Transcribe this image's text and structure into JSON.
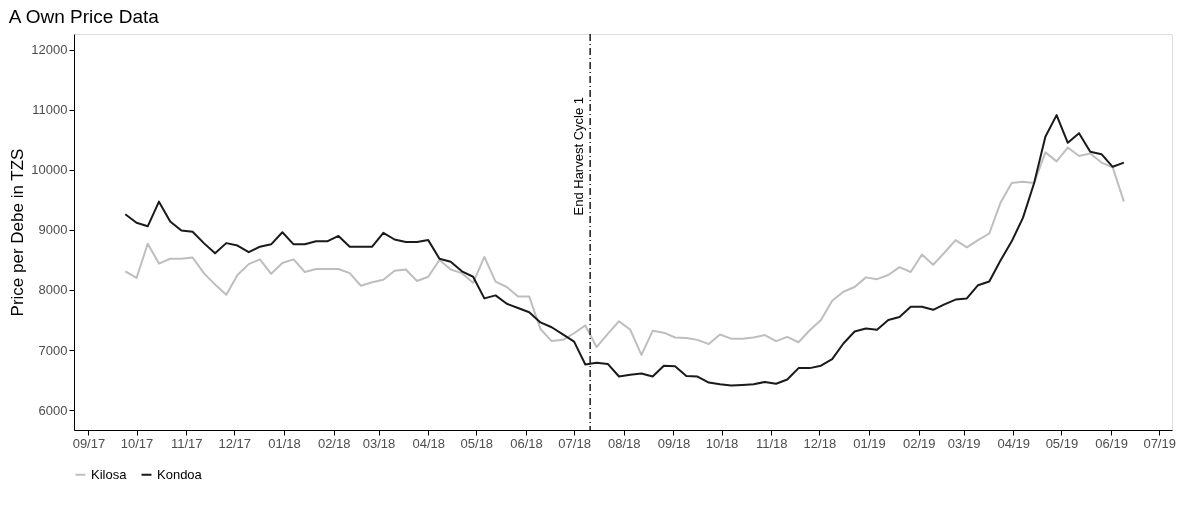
{
  "chart_data": {
    "type": "line",
    "title": "A   Own Price Data",
    "ylabel": "Price per Debe in TZS",
    "x": [
      "2017-09-24",
      "2017-10-01",
      "2017-10-08",
      "2017-10-15",
      "2017-10-22",
      "2017-10-29",
      "2017-11-05",
      "2017-11-12",
      "2017-11-19",
      "2017-11-26",
      "2017-12-03",
      "2017-12-10",
      "2017-12-17",
      "2017-12-24",
      "2017-12-31",
      "2018-01-07",
      "2018-01-14",
      "2018-01-21",
      "2018-01-28",
      "2018-02-04",
      "2018-02-11",
      "2018-02-18",
      "2018-02-25",
      "2018-03-04",
      "2018-03-11",
      "2018-03-18",
      "2018-03-25",
      "2018-04-01",
      "2018-04-08",
      "2018-04-15",
      "2018-04-22",
      "2018-04-29",
      "2018-05-06",
      "2018-05-13",
      "2018-05-20",
      "2018-05-27",
      "2018-06-03",
      "2018-06-10",
      "2018-06-17",
      "2018-06-24",
      "2018-07-01",
      "2018-07-08",
      "2018-07-15",
      "2018-07-22",
      "2018-07-29",
      "2018-08-05",
      "2018-08-12",
      "2018-08-19",
      "2018-08-26",
      "2018-09-02",
      "2018-09-09",
      "2018-09-16",
      "2018-09-23",
      "2018-09-30",
      "2018-10-07",
      "2018-10-14",
      "2018-10-21",
      "2018-10-28",
      "2018-11-04",
      "2018-11-11",
      "2018-11-18",
      "2018-11-25",
      "2018-12-02",
      "2018-12-09",
      "2018-12-16",
      "2018-12-23",
      "2018-12-30",
      "2019-01-06",
      "2019-01-13",
      "2019-01-20",
      "2019-01-27",
      "2019-02-03",
      "2019-02-10",
      "2019-02-17",
      "2019-02-24",
      "2019-03-03",
      "2019-03-10",
      "2019-03-17",
      "2019-03-24",
      "2019-03-31",
      "2019-04-07",
      "2019-04-14",
      "2019-04-21",
      "2019-04-28",
      "2019-05-05",
      "2019-05-12",
      "2019-05-19",
      "2019-05-26",
      "2019-06-02",
      "2019-06-09"
    ],
    "series": [
      {
        "name": "Kilosa",
        "color": "#bebebe",
        "values": [
          8310,
          8200,
          8770,
          8440,
          8520,
          8520,
          8540,
          8280,
          8090,
          7920,
          8250,
          8430,
          8510,
          8270,
          8450,
          8510,
          8300,
          8350,
          8350,
          8350,
          8280,
          8070,
          8130,
          8170,
          8320,
          8340,
          8150,
          8220,
          8500,
          8340,
          8280,
          8120,
          8550,
          8140,
          8050,
          7890,
          7890,
          7350,
          7150,
          7170,
          7280,
          7410,
          7050,
          7270,
          7480,
          7340,
          6920,
          7320,
          7290,
          7210,
          7200,
          7170,
          7100,
          7260,
          7190,
          7190,
          7210,
          7250,
          7150,
          7220,
          7130,
          7330,
          7500,
          7820,
          7970,
          8050,
          8210,
          8180,
          8250,
          8380,
          8300,
          8590,
          8420,
          8620,
          8830,
          8710,
          8830,
          8940,
          9450,
          9780,
          9800,
          9780,
          10290,
          10140,
          10370,
          10230,
          10270,
          10120,
          10040,
          9470
        ]
      },
      {
        "name": "Kondoa",
        "color": "#1a1a1a",
        "values": [
          9260,
          9120,
          9060,
          9470,
          9140,
          8990,
          8970,
          8780,
          8610,
          8780,
          8740,
          8630,
          8720,
          8760,
          8960,
          8760,
          8760,
          8810,
          8810,
          8900,
          8720,
          8720,
          8720,
          8950,
          8840,
          8800,
          8800,
          8830,
          8520,
          8470,
          8310,
          8220,
          7860,
          7910,
          7770,
          7700,
          7630,
          7460,
          7380,
          7260,
          7140,
          6760,
          6790,
          6770,
          6560,
          6590,
          6610,
          6560,
          6740,
          6730,
          6570,
          6560,
          6460,
          6430,
          6410,
          6420,
          6430,
          6470,
          6440,
          6510,
          6700,
          6700,
          6740,
          6850,
          7110,
          7310,
          7360,
          7340,
          7500,
          7550,
          7720,
          7720,
          7670,
          7760,
          7840,
          7860,
          8080,
          8140,
          8490,
          8810,
          9200,
          9780,
          10550,
          10910,
          10450,
          10610,
          10300,
          10260,
          10050,
          10120
        ]
      }
    ],
    "xlim": [
      "2017-08-23",
      "2019-07-09"
    ],
    "xticks": [
      {
        "value": "2017-09-01",
        "label": "09/17"
      },
      {
        "value": "2017-10-01",
        "label": "10/17"
      },
      {
        "value": "2017-11-01",
        "label": "11/17"
      },
      {
        "value": "2017-12-01",
        "label": "12/17"
      },
      {
        "value": "2018-01-01",
        "label": "01/18"
      },
      {
        "value": "2018-02-01",
        "label": "02/18"
      },
      {
        "value": "2018-03-01",
        "label": "03/18"
      },
      {
        "value": "2018-04-01",
        "label": "04/18"
      },
      {
        "value": "2018-05-01",
        "label": "05/18"
      },
      {
        "value": "2018-06-01",
        "label": "06/18"
      },
      {
        "value": "2018-07-01",
        "label": "07/18"
      },
      {
        "value": "2018-08-01",
        "label": "08/18"
      },
      {
        "value": "2018-09-01",
        "label": "09/18"
      },
      {
        "value": "2018-10-01",
        "label": "10/18"
      },
      {
        "value": "2018-11-01",
        "label": "11/18"
      },
      {
        "value": "2018-12-01",
        "label": "12/18"
      },
      {
        "value": "2019-01-01",
        "label": "01/19"
      },
      {
        "value": "2019-02-01",
        "label": "02/19"
      },
      {
        "value": "2019-03-01",
        "label": "03/19"
      },
      {
        "value": "2019-04-01",
        "label": "04/19"
      },
      {
        "value": "2019-05-01",
        "label": "05/19"
      },
      {
        "value": "2019-06-01",
        "label": "06/19"
      },
      {
        "value": "2019-07-01",
        "label": "07/19"
      }
    ],
    "ylim": [
      5670,
      12260
    ],
    "yticks": [
      6000,
      7000,
      8000,
      9000,
      10000,
      11000,
      12000
    ],
    "ref_lines": [
      {
        "axis": "x",
        "value": "2018-07-11",
        "label": "End Harvest Cycle 1",
        "color": "#1a1a1a",
        "line_style": "dashed"
      }
    ],
    "grid": false,
    "legend": "bottom"
  }
}
